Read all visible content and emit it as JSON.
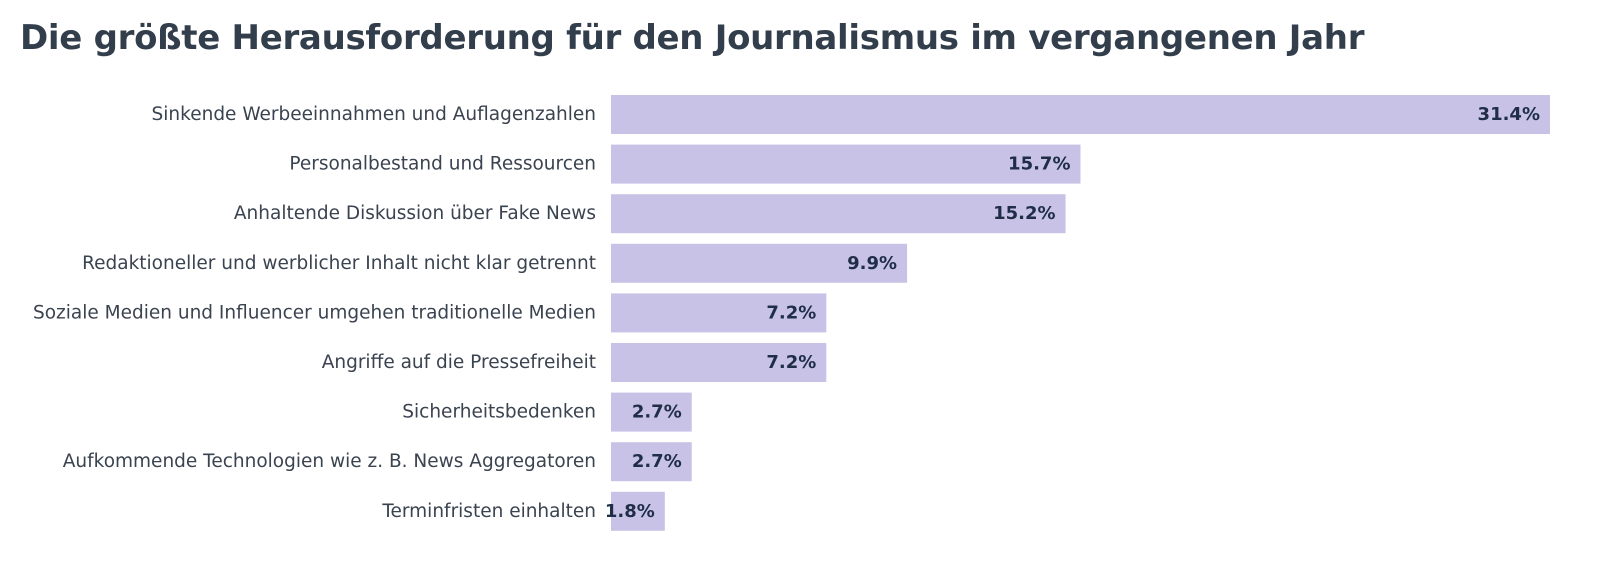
{
  "chart_data": {
    "type": "bar",
    "orientation": "horizontal",
    "title": "Die größte Herausforderung für den Journalismus im vergangenen Jahr",
    "categories": [
      "Sinkende Werbeeinnahmen und Auflagenzahlen",
      "Personalbestand und Ressourcen",
      "Anhaltende Diskussion über Fake News",
      "Redaktioneller und werblicher Inhalt nicht klar getrennt",
      "Soziale Medien und Influencer umgehen traditionelle Medien",
      "Angriffe auf die Pressefreiheit",
      "Sicherheitsbedenken",
      "Aufkommende Technologien wie z. B. News Aggregatoren",
      "Terminfristen einhalten"
    ],
    "values": [
      31.4,
      15.7,
      15.2,
      9.9,
      7.2,
      7.2,
      2.7,
      2.7,
      1.8
    ],
    "value_labels": [
      "31.4%",
      "15.7%",
      "15.2%",
      "9.9%",
      "7.2%",
      "7.2%",
      "2.7%",
      "2.7%",
      "1.8%"
    ],
    "xlim": [
      0,
      31.4
    ],
    "grid": false,
    "bar_color": "#c8c3e6",
    "title_color": "#323e4b",
    "label_color": "#3a4350",
    "value_label_color": "#1f2d47"
  }
}
